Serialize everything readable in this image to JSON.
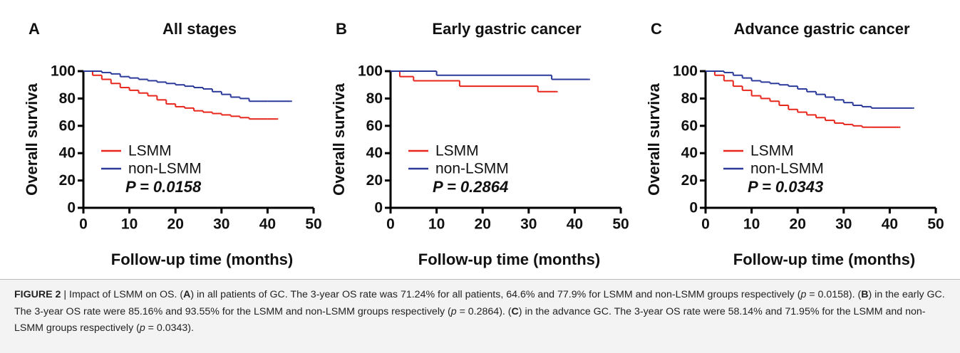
{
  "chart_data": [
    {
      "type": "step",
      "panel_label": "A",
      "title": "All stages",
      "y_label": "Overall surviva",
      "x_label": "Follow-up time (months)",
      "xlim": [
        0,
        50
      ],
      "xticks": [
        0,
        10,
        20,
        30,
        40,
        50
      ],
      "ylim": [
        0,
        100
      ],
      "yticks": [
        0,
        20,
        40,
        60,
        80,
        100
      ],
      "annotation": "P = 0.0158",
      "series": [
        {
          "name": "LSMM",
          "color": "#e8261c",
          "x": [
            0,
            2,
            4,
            6,
            8,
            10,
            12,
            14,
            16,
            18,
            20,
            22,
            24,
            26,
            28,
            30,
            32,
            34,
            36,
            38,
            40,
            42
          ],
          "values": [
            100,
            97,
            94,
            91,
            88,
            86,
            84,
            82,
            79,
            76,
            74,
            73,
            71,
            70,
            69,
            68,
            67,
            66,
            65,
            65,
            65,
            65
          ]
        },
        {
          "name": "non-LSMM",
          "color": "#2b3a9a",
          "x": [
            0,
            4,
            6,
            8,
            10,
            12,
            14,
            16,
            18,
            20,
            22,
            24,
            26,
            28,
            30,
            32,
            34,
            36,
            40,
            45
          ],
          "values": [
            100,
            99,
            98,
            96,
            95,
            94,
            93,
            92,
            91,
            90,
            89,
            88,
            87,
            85,
            83,
            81,
            80,
            78,
            78,
            78
          ]
        }
      ]
    },
    {
      "type": "step",
      "panel_label": "B",
      "title": "Early gastric cancer",
      "y_label": "Overall surviva",
      "x_label": "Follow-up time (months)",
      "xlim": [
        0,
        50
      ],
      "xticks": [
        0,
        10,
        20,
        30,
        40,
        50
      ],
      "ylim": [
        0,
        100
      ],
      "yticks": [
        0,
        20,
        40,
        60,
        80,
        100
      ],
      "annotation": "P = 0.2864",
      "series": [
        {
          "name": "LSMM",
          "color": "#e8261c",
          "x": [
            0,
            2,
            5,
            15,
            32,
            36
          ],
          "values": [
            100,
            96,
            93,
            89,
            85,
            85
          ]
        },
        {
          "name": "non-LSMM",
          "color": "#2b3a9a",
          "x": [
            0,
            10,
            35,
            43
          ],
          "values": [
            100,
            97,
            94,
            94
          ]
        }
      ]
    },
    {
      "type": "step",
      "panel_label": "C",
      "title": "Advance gastric cancer",
      "y_label": "Overall surviva",
      "x_label": "Follow-up time (months)",
      "xlim": [
        0,
        50
      ],
      "xticks": [
        0,
        10,
        20,
        30,
        40,
        50
      ],
      "ylim": [
        0,
        100
      ],
      "yticks": [
        0,
        20,
        40,
        60,
        80,
        100
      ],
      "annotation": "P = 0.0343",
      "series": [
        {
          "name": "LSMM",
          "color": "#e8261c",
          "x": [
            0,
            2,
            4,
            6,
            8,
            10,
            12,
            14,
            16,
            18,
            20,
            22,
            24,
            26,
            28,
            30,
            32,
            34,
            36,
            42
          ],
          "values": [
            100,
            97,
            93,
            89,
            86,
            82,
            80,
            78,
            75,
            72,
            70,
            68,
            66,
            64,
            62,
            61,
            60,
            59,
            59,
            59
          ]
        },
        {
          "name": "non-LSMM",
          "color": "#2b3a9a",
          "x": [
            0,
            4,
            6,
            8,
            10,
            12,
            14,
            16,
            18,
            20,
            22,
            24,
            26,
            28,
            30,
            32,
            34,
            36,
            45
          ],
          "values": [
            100,
            99,
            97,
            95,
            93,
            92,
            91,
            90,
            89,
            87,
            85,
            83,
            81,
            79,
            77,
            75,
            74,
            73,
            73
          ]
        }
      ]
    }
  ],
  "caption": {
    "label": "FIGURE 2",
    "segments": [
      " | Impact of LSMM on OS. (",
      "A",
      ") in all patients of GC. The 3-year OS rate was 71.24% for all patients, 64.6% and 77.9% for LSMM and non-LSMM groups respectively (",
      "p",
      " = 0.0158). (",
      "B",
      ") in the early GC. The 3-year OS rate were 85.16% and 93.55% for the LSMM and non-LSMM groups respectively (",
      "p",
      " = 0.2864). (",
      "C",
      ") in the advance GC. The 3-year OS rate were 58.14% and 71.95% for the LSMM and non-LSMM groups respectively (",
      "p",
      " = 0.0343)."
    ]
  }
}
